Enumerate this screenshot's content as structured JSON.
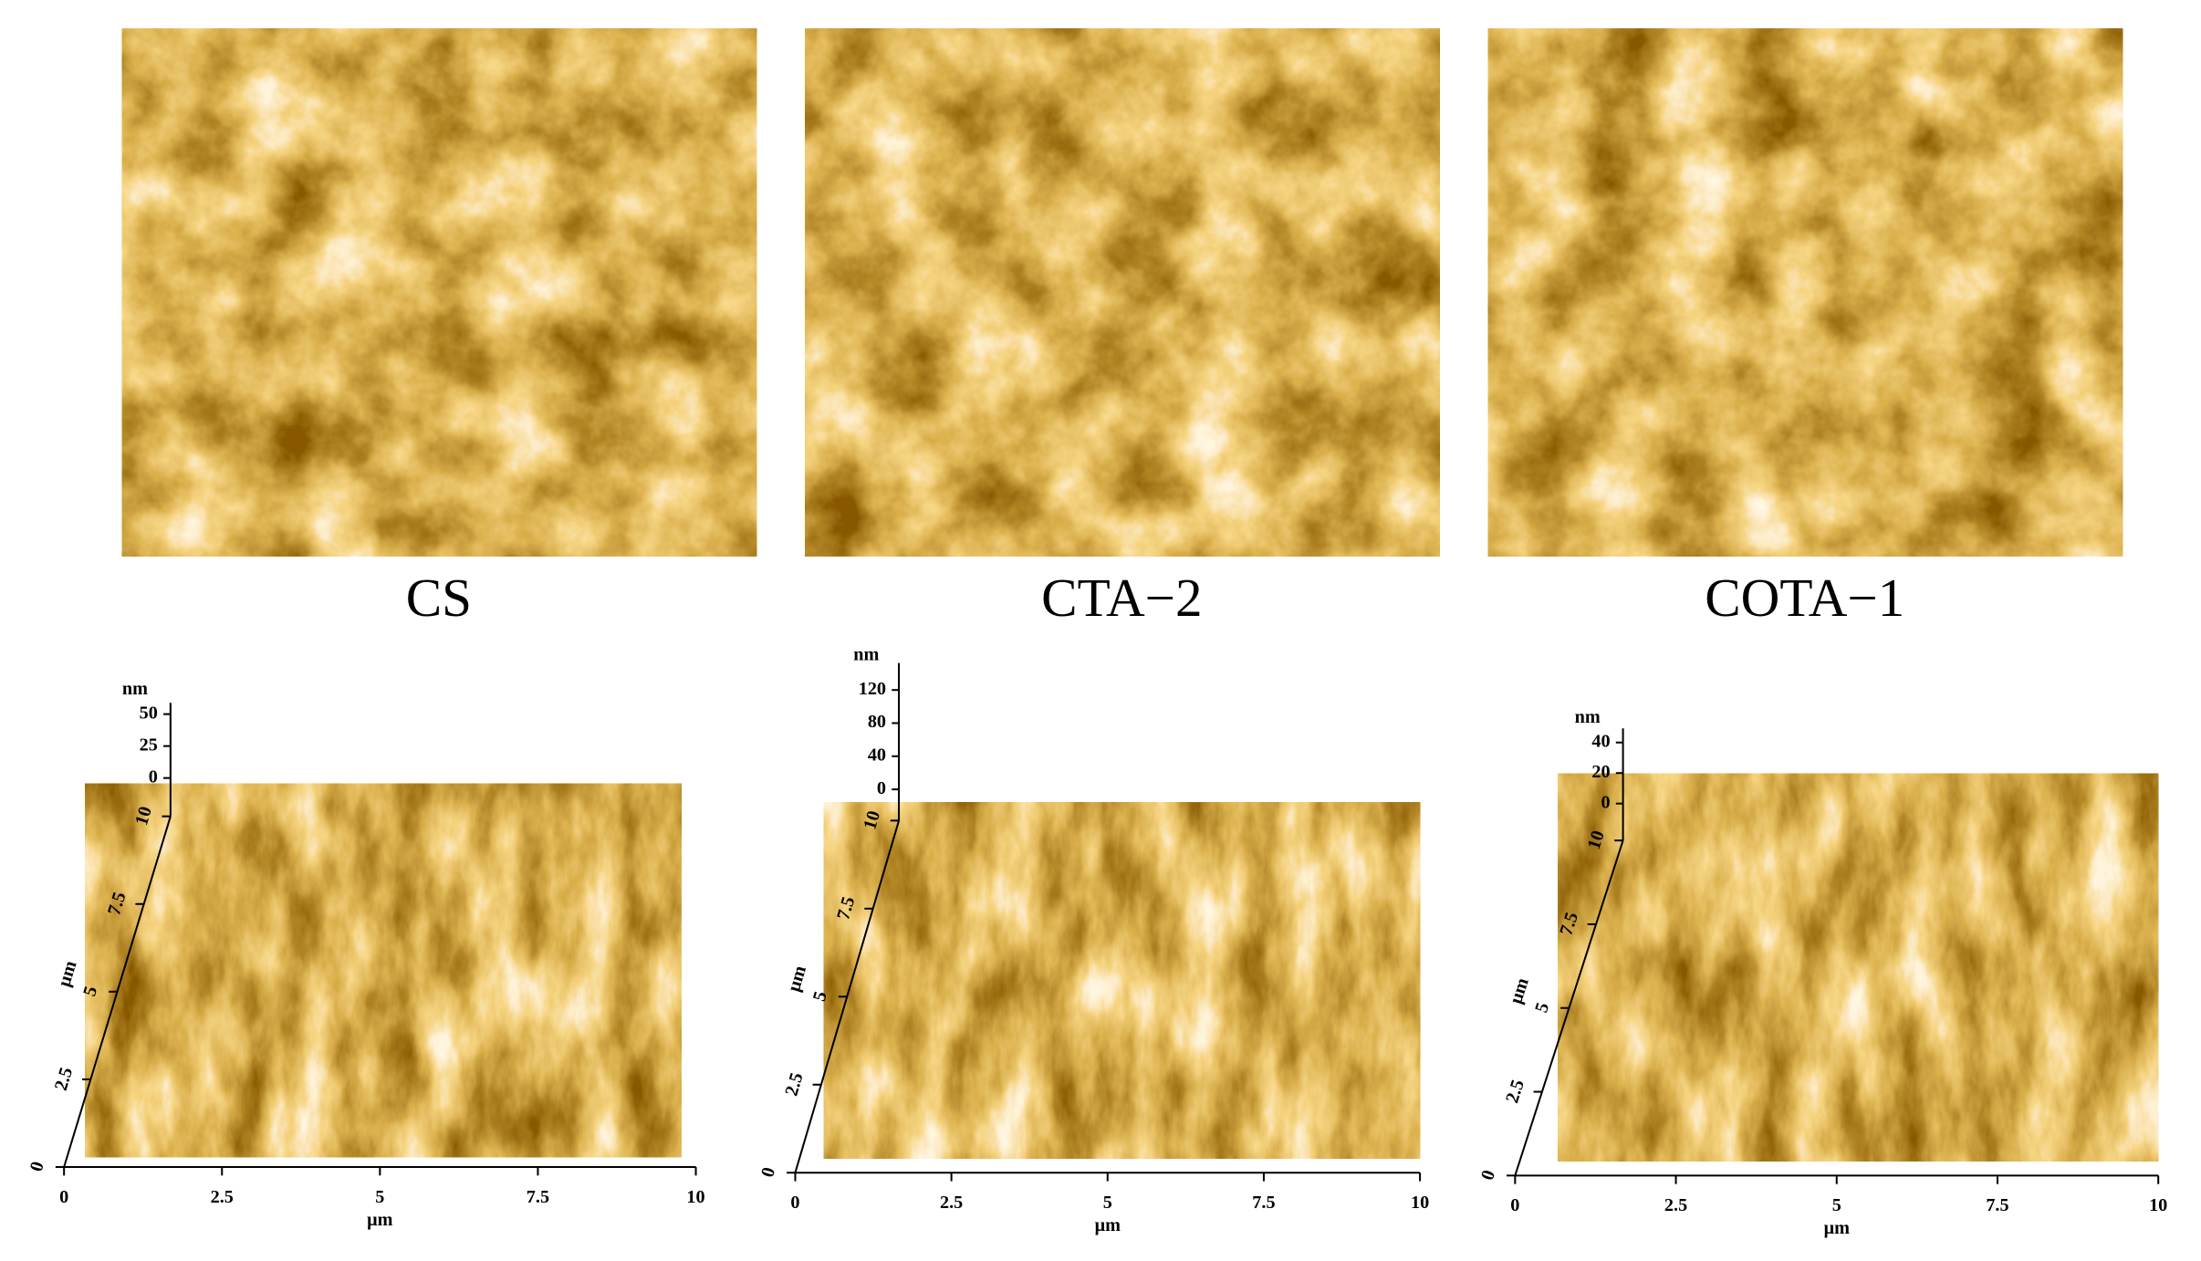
{
  "panels": [
    {
      "label": "CS",
      "z_unit": "nm",
      "z_ticks": [
        "50",
        "25",
        "0"
      ],
      "y_unit": "μm",
      "y_ticks": [
        "0",
        "2.5",
        "5",
        "7.5",
        "10"
      ],
      "x_unit": "μm",
      "x_ticks": [
        "0",
        "2.5",
        "5",
        "7.5",
        "10"
      ]
    },
    {
      "label": "CTA−2",
      "z_unit": "nm",
      "z_ticks": [
        "120",
        "80",
        "40",
        "0"
      ],
      "y_unit": "μm",
      "y_ticks": [
        "0",
        "2.5",
        "5",
        "7.5",
        "10"
      ],
      "x_unit": "μm",
      "x_ticks": [
        "0",
        "2.5",
        "5",
        "7.5",
        "10"
      ]
    },
    {
      "label": "COTA−1",
      "z_unit": "nm",
      "z_ticks": [
        "40",
        "20",
        "0"
      ],
      "y_unit": "μm",
      "y_ticks": [
        "0",
        "2.5",
        "5",
        "7.5",
        "10"
      ],
      "x_unit": "μm",
      "x_ticks": [
        "0",
        "2.5",
        "5",
        "7.5",
        "10"
      ]
    }
  ]
}
